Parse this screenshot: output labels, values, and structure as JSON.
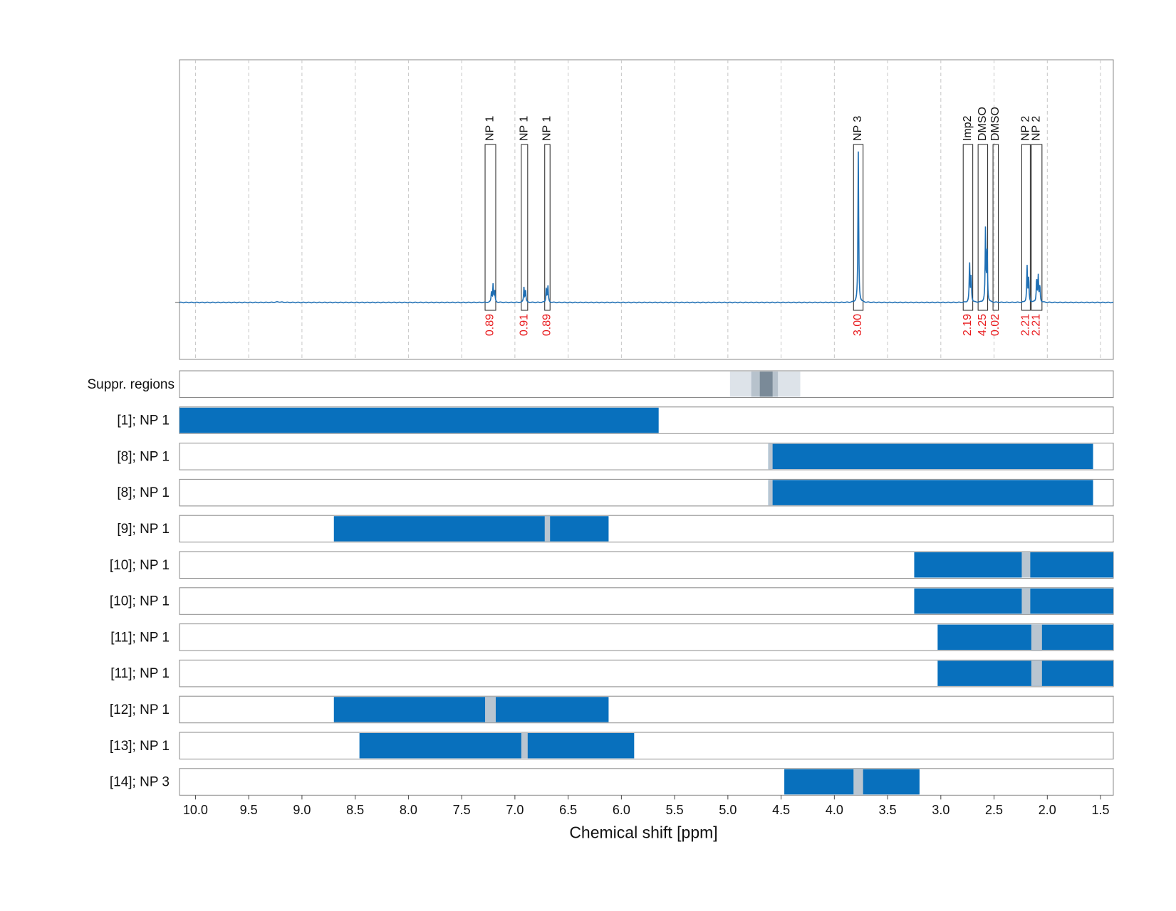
{
  "chart_data": {
    "type": "line",
    "xlabel": "Chemical shift [ppm]",
    "xlim": [
      10.15,
      1.38
    ],
    "x_reversed": true,
    "x_ticks": [
      "10.0",
      "9.5",
      "9.0",
      "8.5",
      "8.0",
      "7.5",
      "7.0",
      "6.5",
      "6.0",
      "5.5",
      "5.0",
      "4.5",
      "4.0",
      "3.5",
      "3.0",
      "2.5",
      "2.0",
      "1.5"
    ],
    "grid": "vertical dashed",
    "spectrum": {
      "color": "#1f6fb4",
      "peaks": [
        {
          "x": 9.22,
          "h": 0.004,
          "w": 0.03
        },
        {
          "x": 7.22,
          "h": 0.07,
          "w": 0.004
        },
        {
          "x": 7.205,
          "h": 0.12,
          "w": 0.004
        },
        {
          "x": 7.19,
          "h": 0.08,
          "w": 0.004
        },
        {
          "x": 6.915,
          "h": 0.1,
          "w": 0.004
        },
        {
          "x": 6.9,
          "h": 0.085,
          "w": 0.004
        },
        {
          "x": 6.705,
          "h": 0.1,
          "w": 0.004
        },
        {
          "x": 6.69,
          "h": 0.11,
          "w": 0.004
        },
        {
          "x": 3.775,
          "h": 1.0,
          "w": 0.004
        },
        {
          "x": 2.73,
          "h": 0.26,
          "w": 0.004
        },
        {
          "x": 2.715,
          "h": 0.17,
          "w": 0.004
        },
        {
          "x": 2.58,
          "h": 0.5,
          "w": 0.004
        },
        {
          "x": 2.565,
          "h": 0.35,
          "w": 0.004
        },
        {
          "x": 2.19,
          "h": 0.24,
          "w": 0.004
        },
        {
          "x": 2.175,
          "h": 0.16,
          "w": 0.004
        },
        {
          "x": 2.1,
          "h": 0.16,
          "w": 0.004
        },
        {
          "x": 2.085,
          "h": 0.17,
          "w": 0.004
        },
        {
          "x": 2.07,
          "h": 0.11,
          "w": 0.004
        }
      ]
    },
    "integration_regions": [
      {
        "label": "NP 1",
        "integral": "0.89",
        "from": 7.28,
        "to": 7.18
      },
      {
        "label": "NP 1",
        "integral": "0.91",
        "from": 6.94,
        "to": 6.88
      },
      {
        "label": "NP 1",
        "integral": "0.89",
        "from": 6.72,
        "to": 6.67
      },
      {
        "label": "NP 3",
        "integral": "3.00",
        "from": 3.82,
        "to": 3.73
      },
      {
        "label": "Imp2",
        "integral": "2.19",
        "from": 2.79,
        "to": 2.7
      },
      {
        "label": "DMSO",
        "integral": "4.25",
        "from": 2.65,
        "to": 2.56
      },
      {
        "label": "DMSO",
        "integral": "0.02",
        "from": 2.51,
        "to": 2.46
      },
      {
        "label": "NP 2",
        "integral": "2.21",
        "from": 2.24,
        "to": 2.16
      },
      {
        "label": "NP 2",
        "integral": "2.21",
        "from": 2.15,
        "to": 2.05
      }
    ],
    "suppression_regions": {
      "label": "Suppr. regions",
      "layers": [
        {
          "from": 4.98,
          "to": 4.32,
          "color": "#dde3e9"
        },
        {
          "from": 4.78,
          "to": 4.53,
          "color": "#b7c2cc"
        },
        {
          "from": 4.7,
          "to": 4.58,
          "color": "#7a8a98"
        }
      ]
    },
    "rows": [
      {
        "label": "[1]; NP 1",
        "segments": [
          [
            10.15,
            5.65
          ]
        ],
        "gaps": []
      },
      {
        "label": "[8]; NP 1",
        "segments": [
          [
            4.62,
            1.57
          ]
        ],
        "gaps": [
          [
            4.62,
            4.58
          ]
        ]
      },
      {
        "label": "[8]; NP 1",
        "segments": [
          [
            4.62,
            1.57
          ]
        ],
        "gaps": [
          [
            4.62,
            4.58
          ]
        ]
      },
      {
        "label": "[9]; NP 1",
        "segments": [
          [
            8.7,
            6.12
          ]
        ],
        "gaps": [
          [
            6.72,
            6.67
          ]
        ]
      },
      {
        "label": "[10]; NP 1",
        "segments": [
          [
            3.25,
            1.38
          ]
        ],
        "gaps": [
          [
            2.24,
            2.16
          ]
        ]
      },
      {
        "label": "[10]; NP 1",
        "segments": [
          [
            3.25,
            1.38
          ]
        ],
        "gaps": [
          [
            2.24,
            2.16
          ]
        ]
      },
      {
        "label": "[11]; NP 1",
        "segments": [
          [
            3.03,
            1.38
          ]
        ],
        "gaps": [
          [
            2.15,
            2.05
          ]
        ]
      },
      {
        "label": "[11]; NP 1",
        "segments": [
          [
            3.03,
            1.38
          ]
        ],
        "gaps": [
          [
            2.15,
            2.05
          ]
        ]
      },
      {
        "label": "[12]; NP 1",
        "segments": [
          [
            8.7,
            6.12
          ]
        ],
        "gaps": [
          [
            7.28,
            7.18
          ]
        ]
      },
      {
        "label": "[13]; NP 1",
        "segments": [
          [
            8.46,
            5.88
          ]
        ],
        "gaps": [
          [
            6.94,
            6.88
          ]
        ]
      },
      {
        "label": "[14]; NP 3",
        "segments": [
          [
            4.47,
            3.2
          ]
        ],
        "gaps": [
          [
            3.82,
            3.73
          ]
        ]
      }
    ],
    "colors": {
      "bar": "#0870bd",
      "gap": "#b9c5d0",
      "integral_text": "#e8191c",
      "grid": "#c6c6c6",
      "frame": "#8a8a8a"
    }
  }
}
